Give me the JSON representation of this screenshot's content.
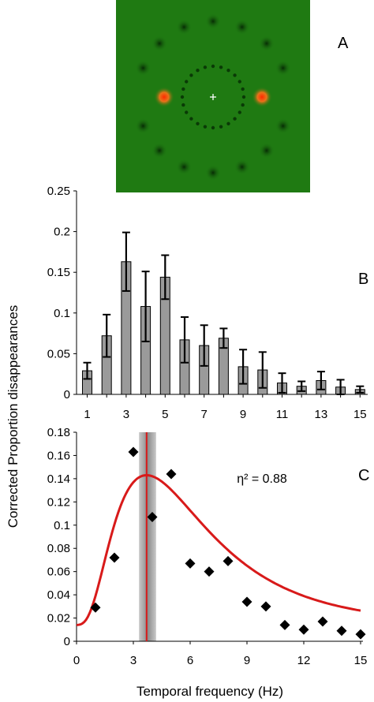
{
  "panels": {
    "a": "A",
    "b": "B",
    "c": "C"
  },
  "ylabel": "Corrected Proportion disappearances",
  "xlabel": "Temporal frequency (Hz)",
  "eta_text": "η² = 0.88",
  "colors": {
    "stim_bg": "#1f7a12",
    "bar": "#9a9a9a",
    "fit": "#d81a1a",
    "marker": "#000000"
  },
  "stimulus": {
    "outer_ring_count": 16,
    "inner_ring_count": 24
  },
  "chart_data": [
    {
      "type": "bar",
      "categories": [
        1,
        2,
        3,
        4,
        5,
        6,
        7,
        8,
        9,
        10,
        11,
        12,
        13,
        14,
        15
      ],
      "x_tick_labels": [
        "1",
        "3",
        "5",
        "7",
        "9",
        "11",
        "13",
        "15"
      ],
      "values": [
        0.029,
        0.072,
        0.163,
        0.108,
        0.144,
        0.067,
        0.06,
        0.069,
        0.034,
        0.03,
        0.014,
        0.01,
        0.017,
        0.009,
        0.006
      ],
      "errors": [
        0.01,
        0.026,
        0.036,
        0.043,
        0.027,
        0.028,
        0.025,
        0.012,
        0.021,
        0.022,
        0.012,
        0.006,
        0.011,
        0.009,
        0.004
      ],
      "ylim": [
        0,
        0.25
      ],
      "y_ticks": [
        "0",
        "0.05",
        "0.1",
        "0.15",
        "0.2",
        "0.25"
      ]
    },
    {
      "type": "scatter",
      "x": [
        1,
        2,
        3,
        4,
        5,
        6,
        7,
        8,
        9,
        10,
        11,
        12,
        13,
        14,
        15
      ],
      "y": [
        0.029,
        0.072,
        0.163,
        0.107,
        0.144,
        0.067,
        0.06,
        0.069,
        0.034,
        0.03,
        0.014,
        0.01,
        0.017,
        0.009,
        0.006
      ],
      "fit_curve": {
        "peak_x": 3.7,
        "peak_y": 0.143,
        "baseline": 0.014
      },
      "peak_band": [
        3.3,
        4.2
      ],
      "xlim": [
        0,
        15
      ],
      "ylim": [
        0,
        0.18
      ],
      "x_ticks": [
        "0",
        "3",
        "6",
        "9",
        "12",
        "15"
      ],
      "y_ticks": [
        "0",
        "0.02",
        "0.04",
        "0.06",
        "0.08",
        "0.1",
        "0.12",
        "0.14",
        "0.16",
        "0.18"
      ]
    }
  ]
}
